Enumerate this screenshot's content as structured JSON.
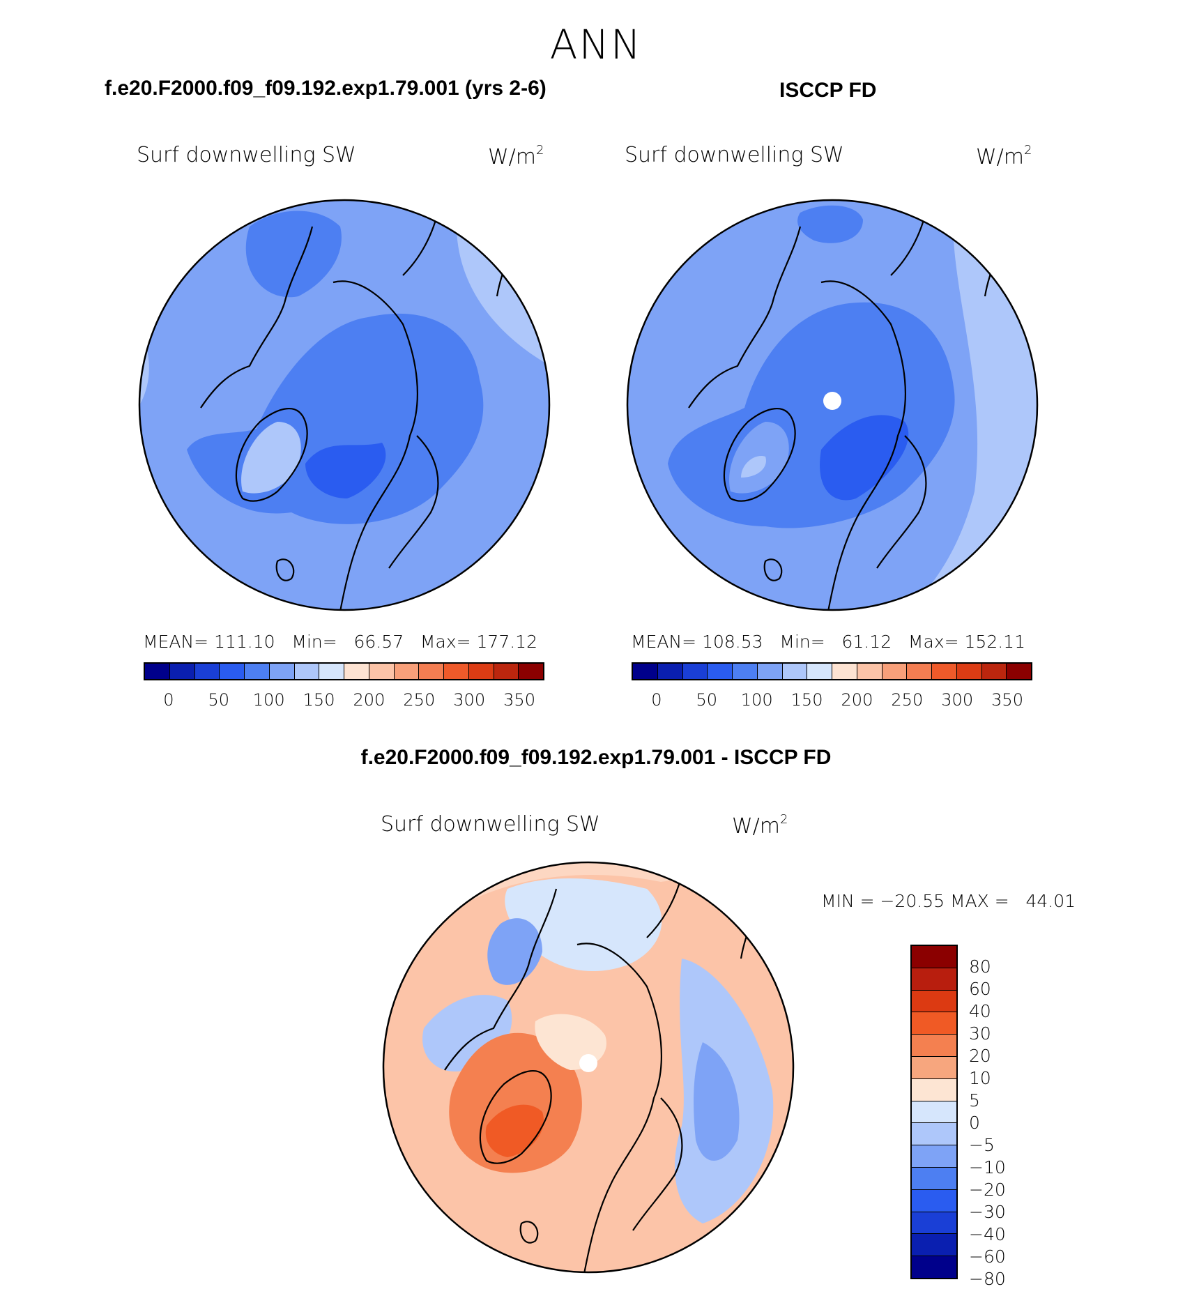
{
  "figure": {
    "season": "ANN",
    "left_title": "f.e20.F2000.f09_f09.192.exp1.79.001 (yrs 2-6)",
    "right_title": "ISCCP FD",
    "diff_title": "f.e20.F2000.f09_f09.192.exp1.79.001 - ISCCP FD"
  },
  "chart_data": [
    {
      "type": "heatmap",
      "projection": "north polar stereographic",
      "title": "f.e20.F2000.f09_f09.192.exp1.79.001 (yrs 2-6)",
      "variable": "Surf downwelling SW",
      "units": "W/m",
      "units_exp": "2",
      "stats_text": "MEAN= 111.10   Min=   66.57   Max= 177.12",
      "mean": 111.1,
      "min": 66.57,
      "max": 177.12,
      "colorbar_ticks": [
        "0",
        "50",
        "100",
        "150",
        "200",
        "250",
        "300",
        "350"
      ],
      "colorbar_colors": [
        "#00008b",
        "#0a1fb0",
        "#1a3fd6",
        "#2a5cf0",
        "#4d7ff2",
        "#7ea3f6",
        "#aec7fa",
        "#d6e6fc",
        "#fde3d2",
        "#fcc4a8",
        "#f8a07a",
        "#f47e52",
        "#ef5a2a",
        "#dc3c14",
        "#bb260e",
        "#8b0000"
      ]
    },
    {
      "type": "heatmap",
      "projection": "north polar stereographic",
      "title": "ISCCP FD",
      "variable": "Surf downwelling SW",
      "units": "W/m",
      "units_exp": "2",
      "stats_text": "MEAN= 108.53   Min=   61.12   Max= 152.11",
      "mean": 108.53,
      "min": 61.12,
      "max": 152.11,
      "colorbar_ticks": [
        "0",
        "50",
        "100",
        "150",
        "200",
        "250",
        "300",
        "350"
      ],
      "colorbar_colors": [
        "#00008b",
        "#0a1fb0",
        "#1a3fd6",
        "#2a5cf0",
        "#4d7ff2",
        "#7ea3f6",
        "#aec7fa",
        "#d6e6fc",
        "#fde3d2",
        "#fcc4a8",
        "#f8a07a",
        "#f47e52",
        "#ef5a2a",
        "#dc3c14",
        "#bb260e",
        "#8b0000"
      ]
    },
    {
      "type": "heatmap",
      "projection": "north polar stereographic",
      "title": "f.e20.F2000.f09_f09.192.exp1.79.001 - ISCCP FD",
      "variable": "Surf downwelling SW",
      "units": "W/m",
      "units_exp": "2",
      "stats_text": "MIN = −20.55 MAX =   44.01",
      "min": -20.55,
      "max": 44.01,
      "colorbar_ticks": [
        "80",
        "60",
        "40",
        "30",
        "20",
        "10",
        "5",
        "0",
        "−5",
        "−10",
        "−20",
        "−30",
        "−40",
        "−60",
        "−80"
      ],
      "colorbar_colors": [
        "#8b0000",
        "#b81e0e",
        "#dc3a12",
        "#f05a25",
        "#f48050",
        "#f7a67e",
        "#fde5d3",
        "#d6e6fc",
        "#aec7fa",
        "#7ea3f6",
        "#4d7ff2",
        "#2a5cf0",
        "#1a3fd6",
        "#0a1fb0",
        "#00008b"
      ]
    }
  ]
}
